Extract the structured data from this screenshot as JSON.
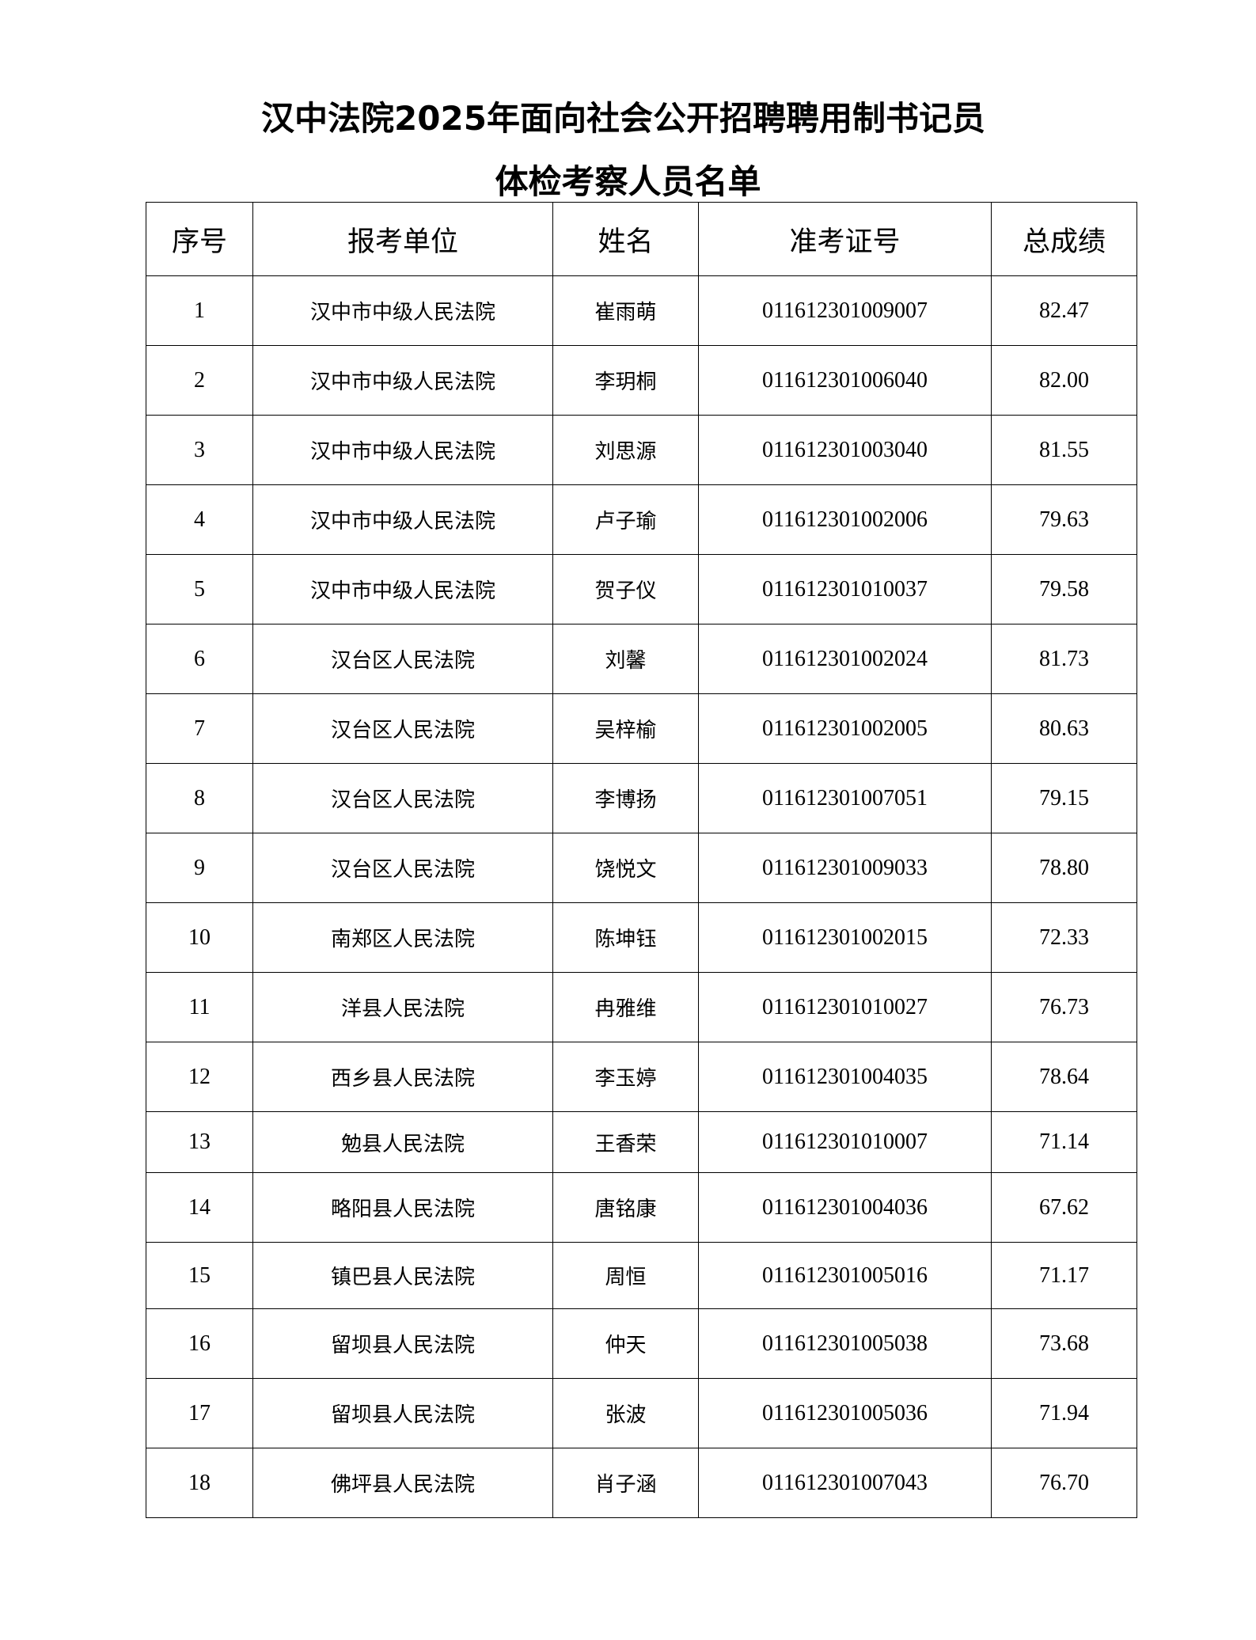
{
  "title_line1": "汉中法院2025年面向社会公开招聘聘用制书记员",
  "title_line2": "体检考察人员名单",
  "table": {
    "headers": [
      "序号",
      "报考单位",
      "姓名",
      "准考证号",
      "总成绩"
    ],
    "rows": [
      [
        "1",
        "汉中市中级人民法院",
        "崔雨萌",
        "011612301009007",
        "82.47"
      ],
      [
        "2",
        "汉中市中级人民法院",
        "李玥桐",
        "011612301006040",
        "82.00"
      ],
      [
        "3",
        "汉中市中级人民法院",
        "刘思源",
        "011612301003040",
        "81.55"
      ],
      [
        "4",
        "汉中市中级人民法院",
        "卢子瑜",
        "011612301002006",
        "79.63"
      ],
      [
        "5",
        "汉中市中级人民法院",
        "贺子仪",
        "011612301010037",
        "79.58"
      ],
      [
        "6",
        "汉台区人民法院",
        "刘馨",
        "011612301002024",
        "81.73"
      ],
      [
        "7",
        "汉台区人民法院",
        "吴梓榆",
        "011612301002005",
        "80.63"
      ],
      [
        "8",
        "汉台区人民法院",
        "李博扬",
        "011612301007051",
        "79.15"
      ],
      [
        "9",
        "汉台区人民法院",
        "饶悦文",
        "011612301009033",
        "78.80"
      ],
      [
        "10",
        "南郑区人民法院",
        "陈坤钰",
        "011612301002015",
        "72.33"
      ],
      [
        "11",
        "洋县人民法院",
        "冉雅维",
        "011612301010027",
        "76.73"
      ],
      [
        "12",
        "西乡县人民法院",
        "李玉婷",
        "011612301004035",
        "78.64"
      ],
      [
        "13",
        "勉县人民法院",
        "王香荣",
        "011612301010007",
        "71.14"
      ],
      [
        "14",
        "略阳县人民法院",
        "唐铭康",
        "011612301004036",
        "67.62"
      ],
      [
        "15",
        "镇巴县人民法院",
        "周恒",
        "011612301005016",
        "71.17"
      ],
      [
        "16",
        "留坝县人民法院",
        "仲天",
        "011612301005038",
        "73.68"
      ],
      [
        "17",
        "留坝县人民法院",
        "张波",
        "011612301005036",
        "71.94"
      ],
      [
        "18",
        "佛坪县人民法院",
        "肖子涵",
        "011612301007043",
        "76.70"
      ]
    ]
  }
}
